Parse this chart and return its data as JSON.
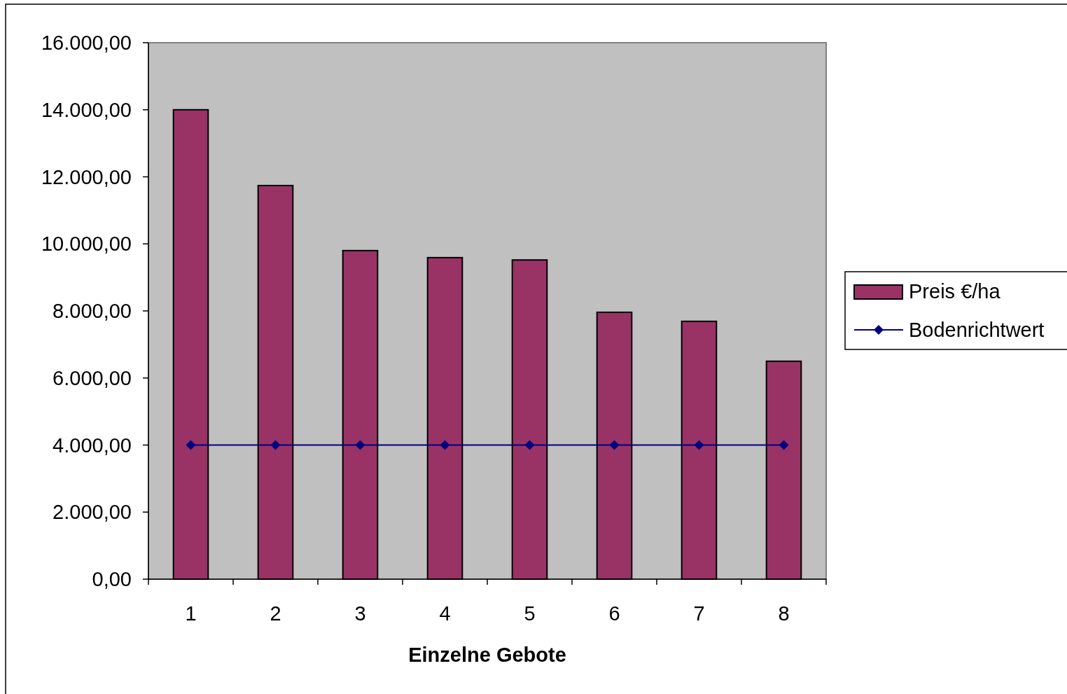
{
  "chart_data": {
    "type": "bar",
    "xlabel": "Einzelne Gebote",
    "categories": [
      "1",
      "2",
      "3",
      "4",
      "5",
      "6",
      "7",
      "8"
    ],
    "series": [
      {
        "name": "Preis €/ha",
        "color": "#993366",
        "values": [
          14000,
          11740,
          9800,
          9590,
          9520,
          7960,
          7690,
          6500
        ]
      },
      {
        "name": "Bodenrichtwert",
        "type": "line",
        "color": "#000080",
        "marker": "diamond",
        "values": [
          4000,
          4000,
          4000,
          4000,
          4000,
          4000,
          4000,
          4000
        ]
      }
    ],
    "ylim": [
      0,
      16000
    ],
    "yticks": [
      {
        "value": 0,
        "label": "0,00"
      },
      {
        "value": 2000,
        "label": "2.000,00"
      },
      {
        "value": 4000,
        "label": "4.000,00"
      },
      {
        "value": 6000,
        "label": "6.000,00"
      },
      {
        "value": 8000,
        "label": "8.000,00"
      },
      {
        "value": 10000,
        "label": "10.000,00"
      },
      {
        "value": 12000,
        "label": "12.000,00"
      },
      {
        "value": 14000,
        "label": "14.000,00"
      },
      {
        "value": 16000,
        "label": "16.000,00"
      }
    ],
    "grid": false,
    "legend": "right"
  }
}
